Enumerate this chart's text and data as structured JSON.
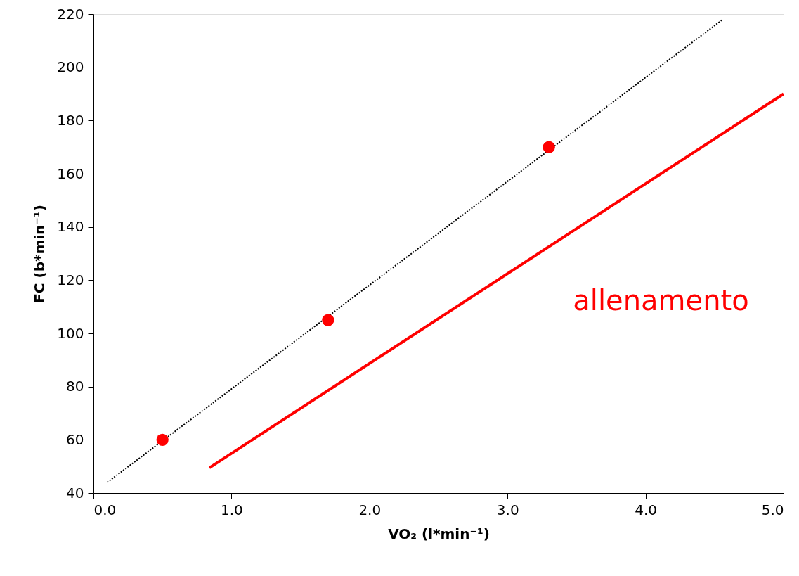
{
  "chart_data": {
    "type": "scatter",
    "xlabel": "VO₂ (l*min⁻¹)",
    "ylabel": "FC  (b*min⁻¹)",
    "xlim": [
      0,
      5
    ],
    "ylim": [
      40,
      220
    ],
    "xticks": [
      {
        "value": 0,
        "label": "0.0"
      },
      {
        "value": 1,
        "label": "1.0"
      },
      {
        "value": 2,
        "label": "2.0"
      },
      {
        "value": 3,
        "label": "3.0"
      },
      {
        "value": 4,
        "label": "4.0"
      },
      {
        "value": 5,
        "label": "5.0"
      }
    ],
    "yticks": [
      40,
      60,
      80,
      100,
      120,
      140,
      160,
      180,
      200,
      220
    ],
    "grid": false,
    "series": [
      {
        "type": "line",
        "color": "#000000",
        "line_style": "dotted",
        "marker": "none",
        "x": [
          0.1,
          4.56
        ],
        "values": [
          44,
          218
        ]
      },
      {
        "color": "#ff0000",
        "marker": "circle",
        "x": [
          0.5,
          1.7,
          3.3
        ],
        "values": [
          60,
          105,
          170
        ]
      },
      {
        "type": "line",
        "name": "allenamento",
        "color": "#ff0000",
        "line_style": "solid",
        "marker": "none",
        "x": [
          0.84,
          5.0
        ],
        "values": [
          49.5,
          190
        ]
      }
    ]
  }
}
